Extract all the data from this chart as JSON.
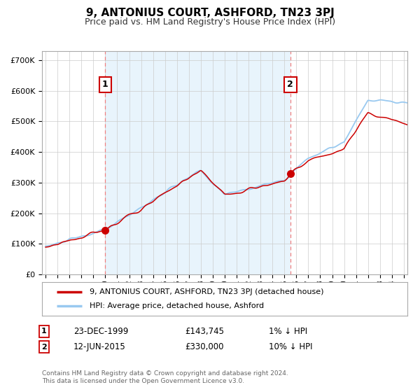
{
  "title": "9, ANTONIUS COURT, ASHFORD, TN23 3PJ",
  "subtitle": "Price paid vs. HM Land Registry's House Price Index (HPI)",
  "ylabel_ticks": [
    "£0",
    "£100K",
    "£200K",
    "£300K",
    "£400K",
    "£500K",
    "£600K",
    "£700K"
  ],
  "ytick_values": [
    0,
    100000,
    200000,
    300000,
    400000,
    500000,
    600000,
    700000
  ],
  "ylim": [
    0,
    730000
  ],
  "xlim_start": 1994.7,
  "xlim_end": 2025.3,
  "purchase1_year": 2000.0,
  "purchase1_price": 143745,
  "purchase2_year": 2015.5,
  "purchase2_price": 330000,
  "hpi_line_color": "#99c9f0",
  "price_line_color": "#cc0000",
  "purchase_dot_color": "#cc0000",
  "vline_color": "#f08080",
  "grid_color": "#cccccc",
  "background_color": "#ffffff",
  "shading_color": "#e8f4fc",
  "legend_label1": "9, ANTONIUS COURT, ASHFORD, TN23 3PJ (detached house)",
  "legend_label2": "HPI: Average price, detached house, Ashford",
  "note1_date": "23-DEC-1999",
  "note1_price": "£143,745",
  "note1_hpi": "1% ↓ HPI",
  "note2_date": "12-JUN-2015",
  "note2_price": "£330,000",
  "note2_hpi": "10% ↓ HPI",
  "footer": "Contains HM Land Registry data © Crown copyright and database right 2024.\nThis data is licensed under the Open Government Licence v3.0."
}
